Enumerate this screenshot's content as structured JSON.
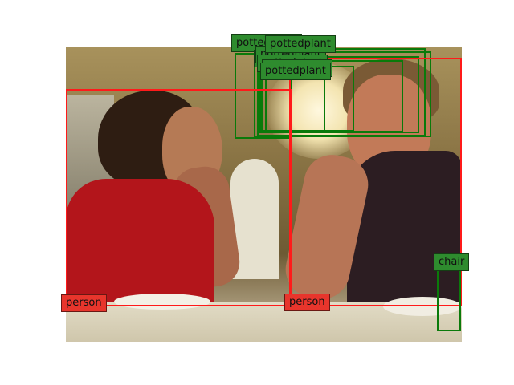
{
  "colors": {
    "person": "#ff1a1a",
    "pottedplant": "#0a7a0a",
    "chair": "#0a7a0a",
    "person_label_bg": "#e8352c",
    "green_label_bg": "#2e8b2e"
  },
  "detections": [
    {
      "label": "pottedplant",
      "kind": "green"
    },
    {
      "label": "pottedplant",
      "kind": "green"
    },
    {
      "label": "pottedplant",
      "kind": "green"
    },
    {
      "label": "pottedplant",
      "kind": "green"
    },
    {
      "label": "pottedplant",
      "kind": "green"
    },
    {
      "label": "pottedplant",
      "kind": "green"
    },
    {
      "label": "pottedplant",
      "kind": "green"
    },
    {
      "label": "person",
      "kind": "red"
    },
    {
      "label": "person",
      "kind": "red"
    },
    {
      "label": "chair",
      "kind": "green"
    }
  ]
}
